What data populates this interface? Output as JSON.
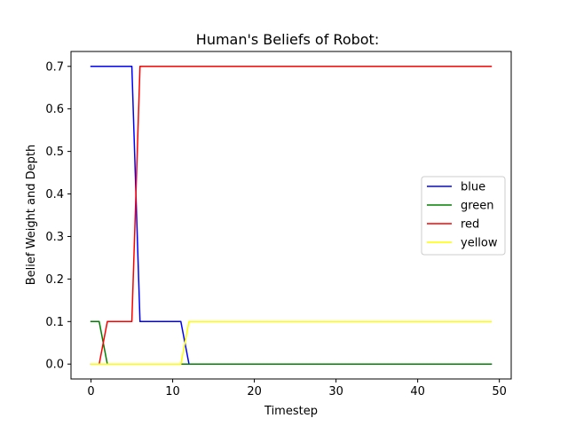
{
  "chart_data": {
    "type": "line",
    "title": "Human's Beliefs of Robot:",
    "xlabel": "Timestep",
    "ylabel": "Belief Weight and Depth",
    "xlim": [
      -2.45,
      51.45
    ],
    "ylim": [
      -0.035,
      0.735
    ],
    "xticks": [
      0,
      10,
      20,
      30,
      40,
      50
    ],
    "yticks": [
      0.0,
      0.1,
      0.2,
      0.3,
      0.4,
      0.5,
      0.6,
      0.7
    ],
    "xtick_labels": [
      "0",
      "10",
      "20",
      "30",
      "40",
      "50"
    ],
    "ytick_labels": [
      "0.0",
      "0.1",
      "0.2",
      "0.3",
      "0.4",
      "0.5",
      "0.6",
      "0.7"
    ],
    "grid": false,
    "legend_position": "center-right",
    "series": [
      {
        "name": "blue",
        "color": "#0000ff",
        "x": [
          0,
          1,
          2,
          3,
          4,
          5,
          6,
          7,
          8,
          9,
          10,
          11,
          12,
          49
        ],
        "y": [
          0.7,
          0.7,
          0.7,
          0.7,
          0.7,
          0.7,
          0.1,
          0.1,
          0.1,
          0.1,
          0.1,
          0.1,
          0.0,
          0.0
        ]
      },
      {
        "name": "green",
        "color": "#008000",
        "x": [
          0,
          1,
          2,
          49
        ],
        "y": [
          0.1,
          0.1,
          0.0,
          0.0
        ]
      },
      {
        "name": "red",
        "color": "#ff0000",
        "x": [
          0,
          1,
          2,
          3,
          4,
          5,
          6,
          49
        ],
        "y": [
          0.0,
          0.0,
          0.1,
          0.1,
          0.1,
          0.1,
          0.7,
          0.7
        ]
      },
      {
        "name": "yellow",
        "color": "#ffff00",
        "x": [
          0,
          11,
          12,
          49
        ],
        "y": [
          0.0,
          0.0,
          0.1,
          0.1
        ]
      }
    ]
  }
}
